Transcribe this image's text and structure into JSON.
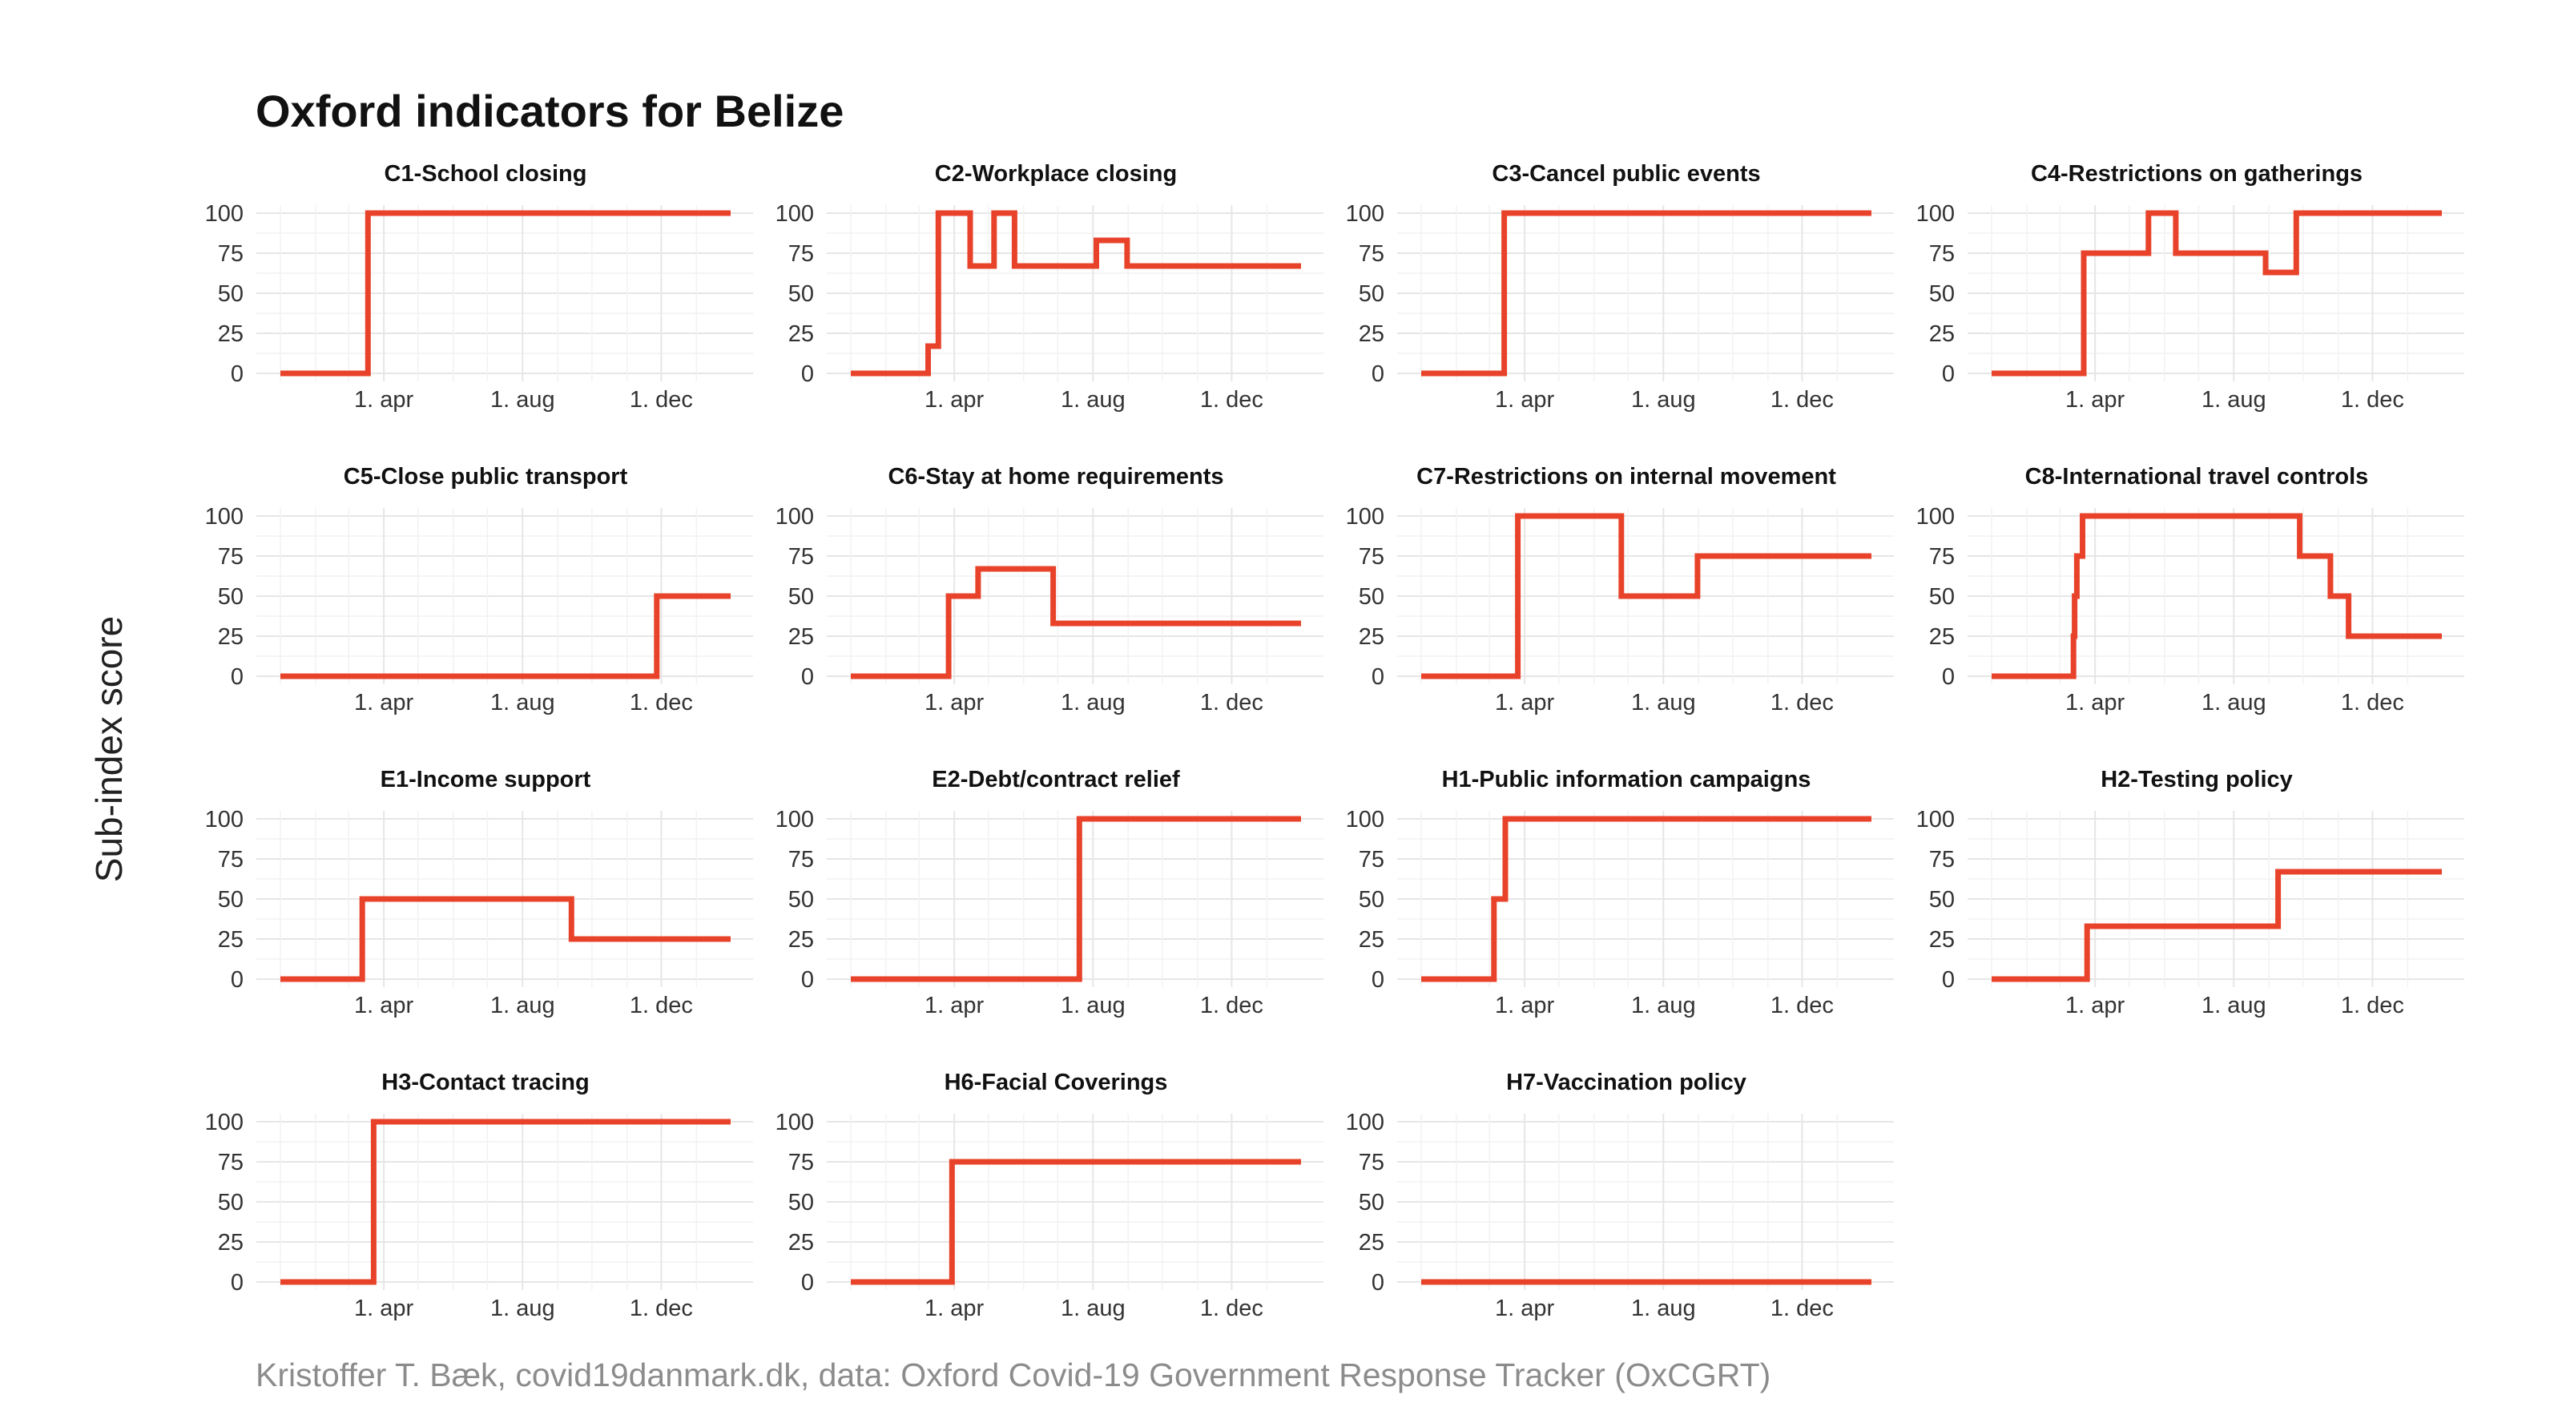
{
  "title": "Oxford indicators for Belize",
  "ylabel": "Sub-index score",
  "caption": "Kristoffer T. Bæk, covid19danmark.dk, data: Oxford Covid-19 Government Response Tracker (OxCGRT)",
  "colors": {
    "line": "#E8432A",
    "grid": "#E6E6E6",
    "text": "#333333",
    "caption": "#8C8C8C"
  },
  "chart_data": {
    "type": "line",
    "step": true,
    "x_range": [
      "2020-01-01",
      "2021-01-31"
    ],
    "ylim": [
      0,
      100
    ],
    "yticks": [
      0,
      25,
      50,
      75,
      100
    ],
    "xticks": [
      {
        "date": "2020-04-01",
        "label": "1. apr"
      },
      {
        "date": "2020-08-01",
        "label": "1. aug"
      },
      {
        "date": "2020-12-01",
        "label": "1. dec"
      }
    ],
    "grid": true,
    "panels": [
      {
        "title": "C1-School closing",
        "points": [
          [
            "2020-01-01",
            0
          ],
          [
            "2020-03-18",
            100
          ],
          [
            "2021-01-31",
            100
          ]
        ]
      },
      {
        "title": "C2-Workplace closing",
        "points": [
          [
            "2020-01-01",
            0
          ],
          [
            "2020-03-09",
            17
          ],
          [
            "2020-03-18",
            100
          ],
          [
            "2020-04-15",
            67
          ],
          [
            "2020-05-06",
            100
          ],
          [
            "2020-05-24",
            67
          ],
          [
            "2020-08-04",
            83
          ],
          [
            "2020-08-31",
            67
          ],
          [
            "2021-01-31",
            67
          ]
        ]
      },
      {
        "title": "C3-Cancel public events",
        "points": [
          [
            "2020-01-01",
            0
          ],
          [
            "2020-03-14",
            100
          ],
          [
            "2021-01-31",
            100
          ]
        ]
      },
      {
        "title": "C4-Restrictions on gatherings",
        "points": [
          [
            "2020-01-01",
            0
          ],
          [
            "2020-03-22",
            75
          ],
          [
            "2020-05-18",
            100
          ],
          [
            "2020-06-11",
            75
          ],
          [
            "2020-08-29",
            63
          ],
          [
            "2020-09-25",
            100
          ],
          [
            "2021-01-31",
            100
          ]
        ]
      },
      {
        "title": "C5-Close public transport",
        "points": [
          [
            "2020-01-01",
            0
          ],
          [
            "2020-11-27",
            50
          ],
          [
            "2021-01-31",
            50
          ]
        ]
      },
      {
        "title": "C6-Stay at home requirements",
        "points": [
          [
            "2020-01-01",
            0
          ],
          [
            "2020-03-27",
            50
          ],
          [
            "2020-04-22",
            67
          ],
          [
            "2020-06-27",
            33
          ],
          [
            "2021-01-31",
            33
          ]
        ]
      },
      {
        "title": "C7-Restrictions on internal movement",
        "points": [
          [
            "2020-01-01",
            0
          ],
          [
            "2020-03-26",
            100
          ],
          [
            "2020-06-25",
            50
          ],
          [
            "2020-08-31",
            75
          ],
          [
            "2021-01-31",
            75
          ]
        ]
      },
      {
        "title": "C8-International travel controls",
        "points": [
          [
            "2020-01-01",
            0
          ],
          [
            "2020-03-13",
            25
          ],
          [
            "2020-03-14",
            50
          ],
          [
            "2020-03-16",
            75
          ],
          [
            "2020-03-21",
            100
          ],
          [
            "2020-09-28",
            75
          ],
          [
            "2020-10-25",
            50
          ],
          [
            "2020-11-10",
            25
          ],
          [
            "2021-01-31",
            25
          ]
        ]
      },
      {
        "title": "E1-Income support",
        "points": [
          [
            "2020-01-01",
            0
          ],
          [
            "2020-03-13",
            50
          ],
          [
            "2020-09-13",
            25
          ],
          [
            "2021-01-31",
            25
          ]
        ]
      },
      {
        "title": "E2-Debt/contract relief",
        "points": [
          [
            "2020-01-01",
            0
          ],
          [
            "2020-07-20",
            100
          ],
          [
            "2021-01-31",
            100
          ]
        ]
      },
      {
        "title": "H1-Public information campaigns",
        "points": [
          [
            "2020-01-01",
            0
          ],
          [
            "2020-03-05",
            50
          ],
          [
            "2020-03-15",
            100
          ],
          [
            "2021-01-31",
            100
          ]
        ]
      },
      {
        "title": "H2-Testing policy",
        "points": [
          [
            "2020-01-01",
            0
          ],
          [
            "2020-03-25",
            33
          ],
          [
            "2020-09-09",
            67
          ],
          [
            "2021-01-31",
            67
          ]
        ]
      },
      {
        "title": "H3-Contact tracing",
        "points": [
          [
            "2020-01-01",
            0
          ],
          [
            "2020-03-23",
            100
          ],
          [
            "2021-01-31",
            100
          ]
        ]
      },
      {
        "title": "H6-Facial Coverings",
        "points": [
          [
            "2020-01-01",
            0
          ],
          [
            "2020-03-30",
            75
          ],
          [
            "2021-01-31",
            75
          ]
        ]
      },
      {
        "title": "H7-Vaccination policy",
        "points": [
          [
            "2020-01-01",
            0
          ],
          [
            "2021-01-31",
            0
          ]
        ]
      }
    ]
  }
}
